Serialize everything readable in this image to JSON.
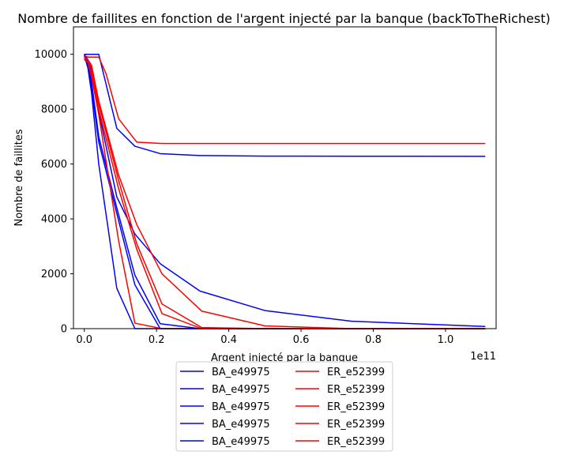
{
  "chart_data": {
    "type": "line",
    "title": "Nombre de faillites en fonction de l'argent injecté par la banque (backToTheRichest)",
    "xlabel": "Argent injecté par la banque",
    "ylabel": "Nombre de faillites",
    "x_offset_text": "1e11",
    "xlim": [
      -3000000000,
      114000000000
    ],
    "ylim": [
      0,
      11000
    ],
    "x_ticks": [
      0,
      20000000000,
      40000000000,
      60000000000,
      80000000000,
      100000000000
    ],
    "x_tick_labels": [
      "0.0",
      "0.2",
      "0.4",
      "0.6",
      "0.8",
      "1.0"
    ],
    "y_ticks": [
      0,
      2000,
      4000,
      6000,
      8000,
      10000
    ],
    "y_tick_labels": [
      "0",
      "2000",
      "4000",
      "6000",
      "8000",
      "10000"
    ],
    "grid": false,
    "legend_position": "bottom-center",
    "legend_columns": 2,
    "colors": {
      "BA": "#0000ff",
      "ER": "#ff0000"
    },
    "series": [
      {
        "name": "BA_e49975",
        "color": "#0000ff",
        "x": [
          0,
          1000000000,
          2000000000,
          4000000000,
          9000000000,
          14000000000,
          21000000000,
          32000000000,
          50000000000,
          74000000000,
          111000000000
        ],
        "y": [
          10000,
          10000,
          10000,
          10000,
          7300,
          6650,
          6380,
          6310,
          6290,
          6285,
          6280
        ]
      },
      {
        "name": "BA_e49975",
        "color": "#0000ff",
        "x": [
          0,
          1000000000,
          2000000000,
          4000000000,
          9000000000,
          14000000000,
          21000000000,
          32000000000,
          50000000000,
          74000000000,
          111000000000
        ],
        "y": [
          10000,
          9800,
          9400,
          7900,
          4800,
          3450,
          2370,
          1370,
          660,
          270,
          80
        ]
      },
      {
        "name": "BA_e49975",
        "color": "#0000ff",
        "x": [
          0,
          1000000000,
          2000000000,
          4000000000,
          9000000000,
          14000000000,
          21000000000,
          32000000000,
          50000000000,
          74000000000,
          111000000000
        ],
        "y": [
          10000,
          9700,
          9000,
          7000,
          4400,
          1950,
          180,
          0,
          0,
          0,
          0
        ]
      },
      {
        "name": "BA_e49975",
        "color": "#0000ff",
        "x": [
          0,
          1000000000,
          2000000000,
          4000000000,
          9000000000,
          14000000000,
          21000000000,
          32000000000,
          50000000000,
          74000000000,
          111000000000
        ],
        "y": [
          10000,
          9600,
          8800,
          6800,
          4200,
          1600,
          0,
          0,
          0,
          0,
          0
        ]
      },
      {
        "name": "BA_e49975",
        "color": "#0000ff",
        "x": [
          0,
          1000000000,
          2000000000,
          4000000000,
          9000000000,
          14000000000,
          21000000000,
          32000000000,
          50000000000,
          74000000000,
          111000000000
        ],
        "y": [
          9950,
          9500,
          8600,
          6000,
          1470,
          0,
          0,
          0,
          0,
          0,
          0
        ]
      },
      {
        "name": "ER_e52399",
        "color": "#ff0000",
        "x": [
          0,
          1000000000,
          2000000000,
          4000000000,
          6000000000,
          9500000000,
          14500000000,
          21500000000,
          32500000000,
          50000000000,
          74000000000,
          111000000000
        ],
        "y": [
          9950,
          9900,
          9900,
          9900,
          9300,
          7650,
          6800,
          6750,
          6750,
          6750,
          6750,
          6750
        ]
      },
      {
        "name": "ER_e52399",
        "color": "#ff0000",
        "x": [
          0,
          1000000000,
          2000000000,
          4000000000,
          9500000000,
          14500000000,
          21500000000,
          32500000000,
          50000000000,
          74000000000,
          111000000000
        ],
        "y": [
          9900,
          9800,
          9600,
          8300,
          5600,
          3800,
          2000,
          640,
          100,
          0,
          0
        ]
      },
      {
        "name": "ER_e52399",
        "color": "#ff0000",
        "x": [
          0,
          1000000000,
          2000000000,
          4000000000,
          9500000000,
          14500000000,
          21500000000,
          32500000000,
          50000000000,
          74000000000,
          111000000000
        ],
        "y": [
          9900,
          9800,
          9500,
          8200,
          5400,
          3100,
          900,
          40,
          0,
          0,
          0
        ]
      },
      {
        "name": "ER_e52399",
        "color": "#ff0000",
        "x": [
          0,
          1000000000,
          2000000000,
          4000000000,
          9500000000,
          14500000000,
          21500000000,
          32500000000,
          50000000000,
          74000000000,
          111000000000
        ],
        "y": [
          9850,
          9700,
          9300,
          8000,
          5100,
          2900,
          550,
          0,
          0,
          0,
          0
        ]
      },
      {
        "name": "ER_e52399",
        "color": "#ff0000",
        "x": [
          0,
          1000000000,
          2000000000,
          4000000000,
          9500000000,
          14000000000,
          21500000000,
          32500000000,
          50000000000,
          74000000000,
          111000000000
        ],
        "y": [
          9800,
          9700,
          9200,
          7800,
          3200,
          200,
          0,
          0,
          0,
          0,
          0
        ]
      }
    ]
  }
}
